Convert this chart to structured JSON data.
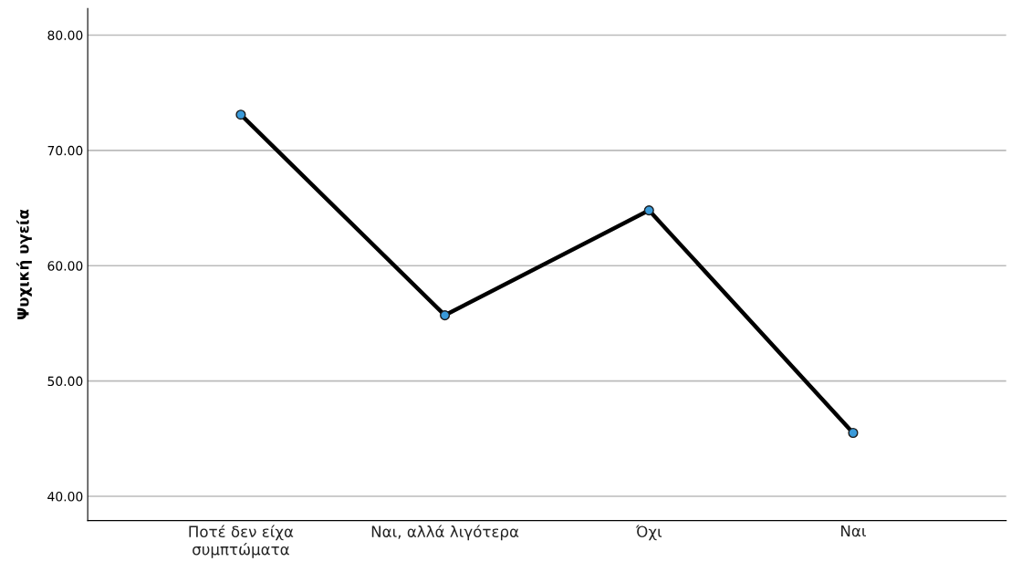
{
  "chart_data": {
    "type": "line",
    "ylabel": "Ψυχική υγεία",
    "categories": [
      "Ποτέ δεν είχα\nσυμπτώματα",
      "Ναι, αλλά λιγότερα",
      "Όχι",
      "Ναι"
    ],
    "series": [
      {
        "color": "#000000",
        "values": [
          73.1,
          55.7,
          64.8,
          45.5
        ]
      }
    ],
    "ylim": [
      37.9,
      82.3
    ],
    "yticks": [
      {
        "value": 40,
        "label": "40.00"
      },
      {
        "value": 50,
        "label": "50.00"
      },
      {
        "value": 60,
        "label": "60.00"
      },
      {
        "value": 70,
        "label": "70.00"
      },
      {
        "value": 80,
        "label": "80.00"
      }
    ],
    "grid": "y",
    "marker": "circle",
    "line_style": "solid"
  }
}
